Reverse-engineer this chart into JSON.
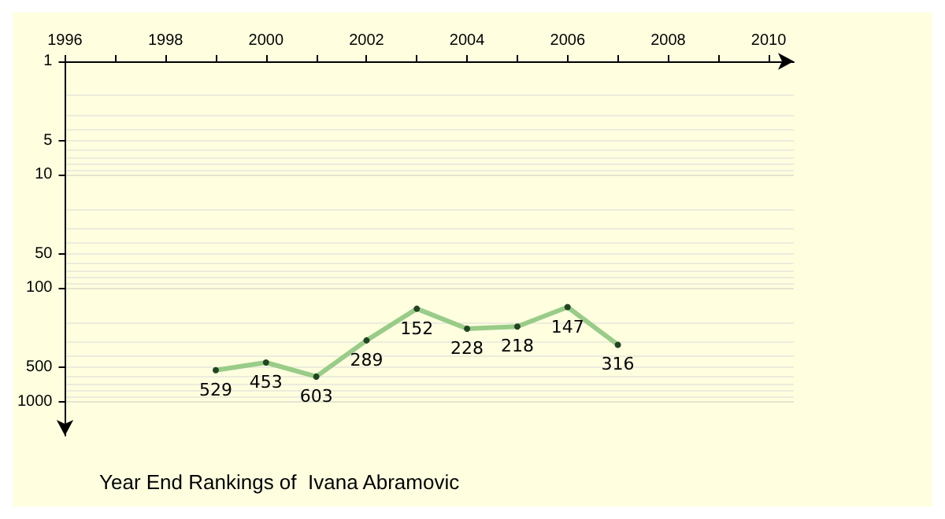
{
  "chart_data": {
    "type": "line",
    "title": "Year End Rankings of  Ivana Abramovic",
    "x": [
      1999,
      2000,
      2001,
      2002,
      2003,
      2004,
      2005,
      2006,
      2007
    ],
    "series": [
      {
        "color": "#99cc88",
        "values": [
          529,
          453,
          603,
          289,
          152,
          228,
          218,
          147,
          316
        ]
      }
    ],
    "xlim": [
      1996,
      2010.5
    ],
    "xticks": [
      1996,
      {
        "value": 1997,
        "label": null
      },
      1998,
      {
        "value": 1999,
        "label": null
      },
      2000,
      {
        "value": 2001,
        "label": null
      },
      2002,
      {
        "value": 2003,
        "label": null
      },
      2004,
      {
        "value": 2005,
        "label": null
      },
      2006,
      {
        "value": 2007,
        "label": null
      },
      2008,
      {
        "value": 2009,
        "label": null
      },
      2010
    ],
    "ylim": [
      2000,
      1
    ],
    "yticks": [
      1,
      5,
      10,
      50,
      100,
      500,
      1000
    ],
    "log": "y",
    "grid": "y",
    "marker": "circle",
    "line_style": "solid",
    "data_labels": true
  }
}
